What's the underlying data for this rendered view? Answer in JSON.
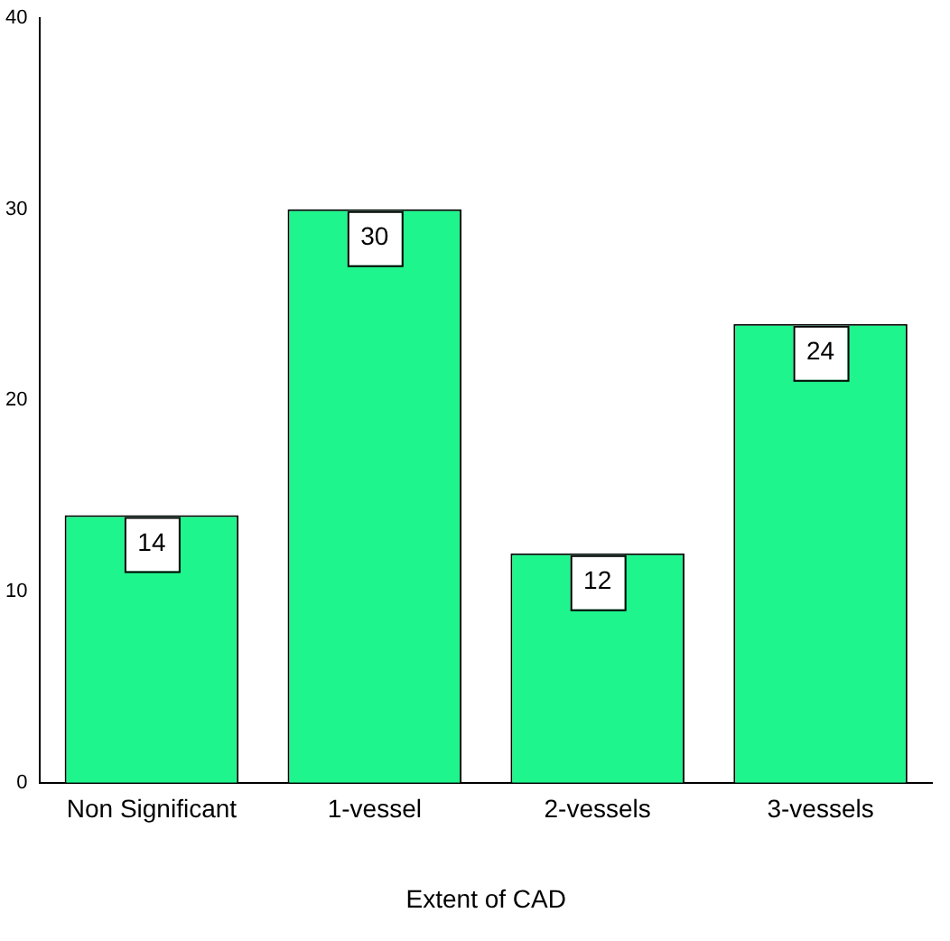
{
  "chart_data": {
    "type": "bar",
    "xlabel": "Extent of CAD",
    "categories": [
      "Non Significant",
      "1-vessel",
      "2-vessels",
      "3-vessels"
    ],
    "values": [
      14,
      30,
      12,
      24
    ],
    "color": "#1ef58c",
    "ylim": [
      0,
      40
    ],
    "yticks": [
      0,
      10,
      20,
      30,
      40
    ],
    "grid": false,
    "legend": false,
    "data_labels": true
  }
}
